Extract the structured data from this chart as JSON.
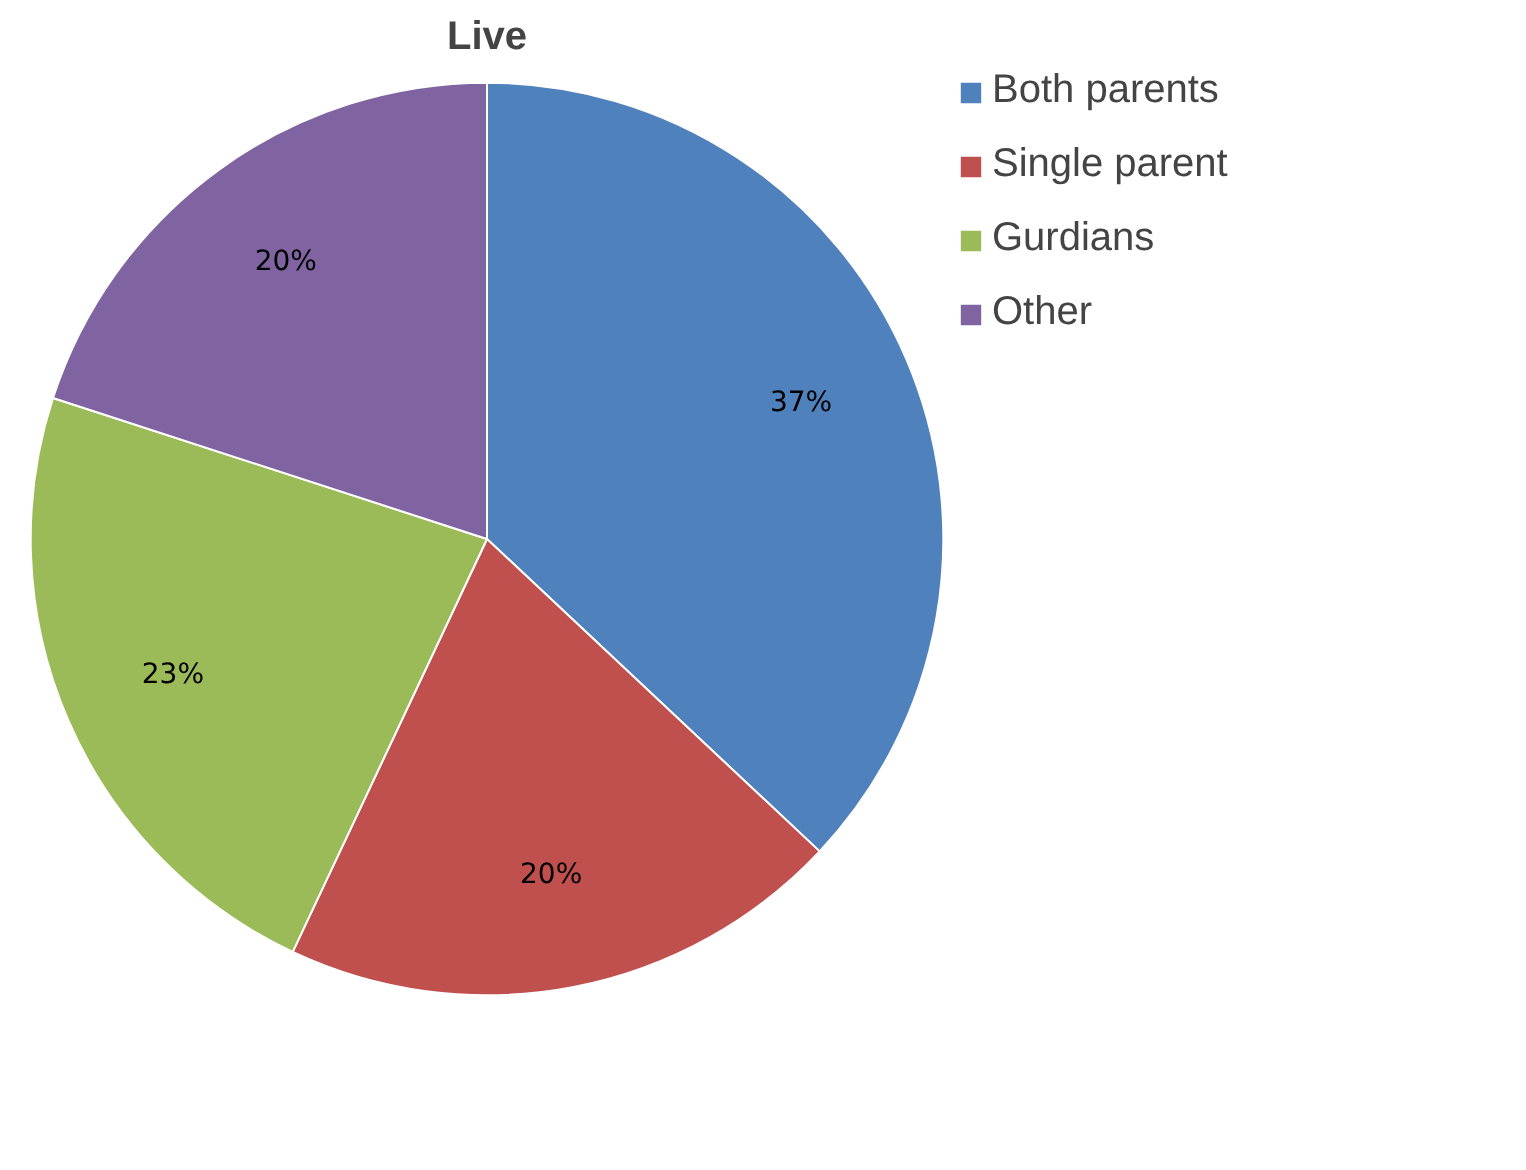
{
  "chart_data": {
    "type": "pie",
    "title": "Live",
    "categories": [
      "Both parents",
      "Single parent",
      "Gurdians",
      "Other"
    ],
    "values": [
      37,
      20,
      23,
      20
    ],
    "colors": [
      "#4f81bd",
      "#c0504d",
      "#9bbb59",
      "#8064a2"
    ],
    "value_labels": [
      "37%",
      "20%",
      "23%",
      "20%"
    ],
    "legend": "right"
  }
}
